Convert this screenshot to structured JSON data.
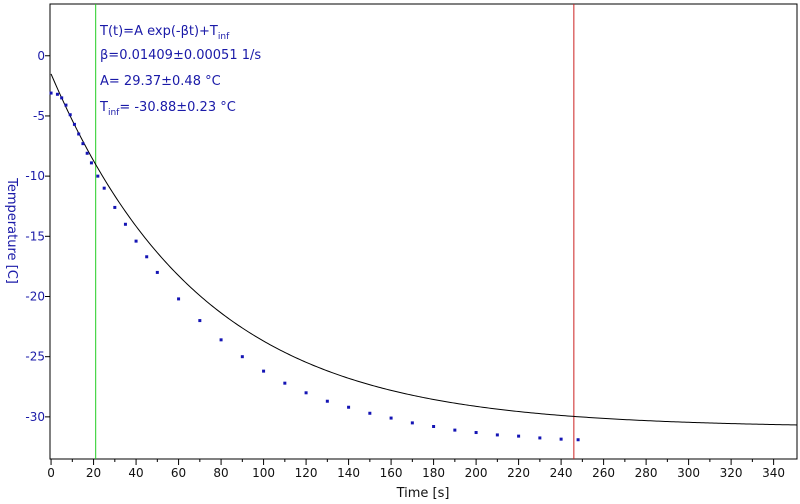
{
  "chart_data": {
    "type": "scatter",
    "title": "",
    "xlabel": "Time [s]",
    "ylabel": "Temperature [C]",
    "xlim": [
      -0.5,
      351
    ],
    "ylim": [
      -33.5,
      4.3
    ],
    "xticks": [
      0,
      10,
      20,
      30,
      40,
      50,
      60,
      70,
      80,
      90,
      100,
      110,
      120,
      130,
      140,
      150,
      160,
      170,
      180,
      190,
      200,
      210,
      220,
      230,
      240,
      250,
      260,
      270,
      280,
      290,
      300,
      310,
      320,
      330,
      340
    ],
    "xtick_labels": [
      "0",
      "",
      "20",
      "",
      "40",
      "",
      "60",
      "",
      "80",
      "",
      "100",
      "",
      "120",
      "",
      "140",
      "",
      "160",
      "",
      "180",
      "",
      "200",
      "",
      "220",
      "",
      "240",
      "",
      "260",
      "",
      "280",
      "",
      "300",
      "",
      "320",
      "",
      "340"
    ],
    "yticks": [
      0,
      -5,
      -10,
      -15,
      -20,
      -25,
      -30
    ],
    "ytick_labels": [
      "0",
      "-5",
      "-10",
      "-15",
      "-20",
      "-25",
      "-30"
    ],
    "grid": false,
    "series": [
      {
        "kind": "measured",
        "color": "#1414b4",
        "x": [
          0,
          3,
          5,
          7,
          9,
          11,
          13,
          15,
          17,
          19,
          22,
          25,
          30,
          35,
          40,
          45,
          50,
          60,
          70,
          80,
          90,
          100,
          110,
          120,
          130,
          140,
          150,
          160,
          170,
          180,
          190,
          200,
          210,
          220,
          230,
          240,
          248
        ],
        "y": [
          -3.1,
          -3.2,
          -3.5,
          -4.1,
          -4.9,
          -5.7,
          -6.5,
          -7.3,
          -8.1,
          -8.9,
          -10.0,
          -11.0,
          -12.6,
          -14.0,
          -15.4,
          -16.7,
          -18.0,
          -20.2,
          -22.0,
          -23.6,
          -25.0,
          -26.2,
          -27.2,
          -28.0,
          -28.7,
          -29.2,
          -29.7,
          -30.1,
          -30.5,
          -30.8,
          -31.1,
          -31.3,
          -31.5,
          -31.6,
          -31.75,
          -31.85,
          -31.9
        ]
      },
      {
        "kind": "fit",
        "color": "#000000",
        "x_range": [
          0,
          351
        ],
        "beta": 0.01409,
        "A": 29.37,
        "T_inf": -30.88
      }
    ],
    "vlines": [
      {
        "x": 21,
        "color": "#22cc22"
      },
      {
        "x": 246,
        "color": "#cc2222"
      }
    ],
    "annotations": {
      "formula_main": "T(t)=A exp(-βt)+T",
      "formula_sub": "inf",
      "beta_text": "β=0.01409±0.00051 1/s",
      "a_text": "A= 29.37±0.48 °C",
      "tinf_main": "T",
      "tinf_sub": "inf",
      "tinf_rest": "= -30.88±0.23 °C"
    }
  }
}
